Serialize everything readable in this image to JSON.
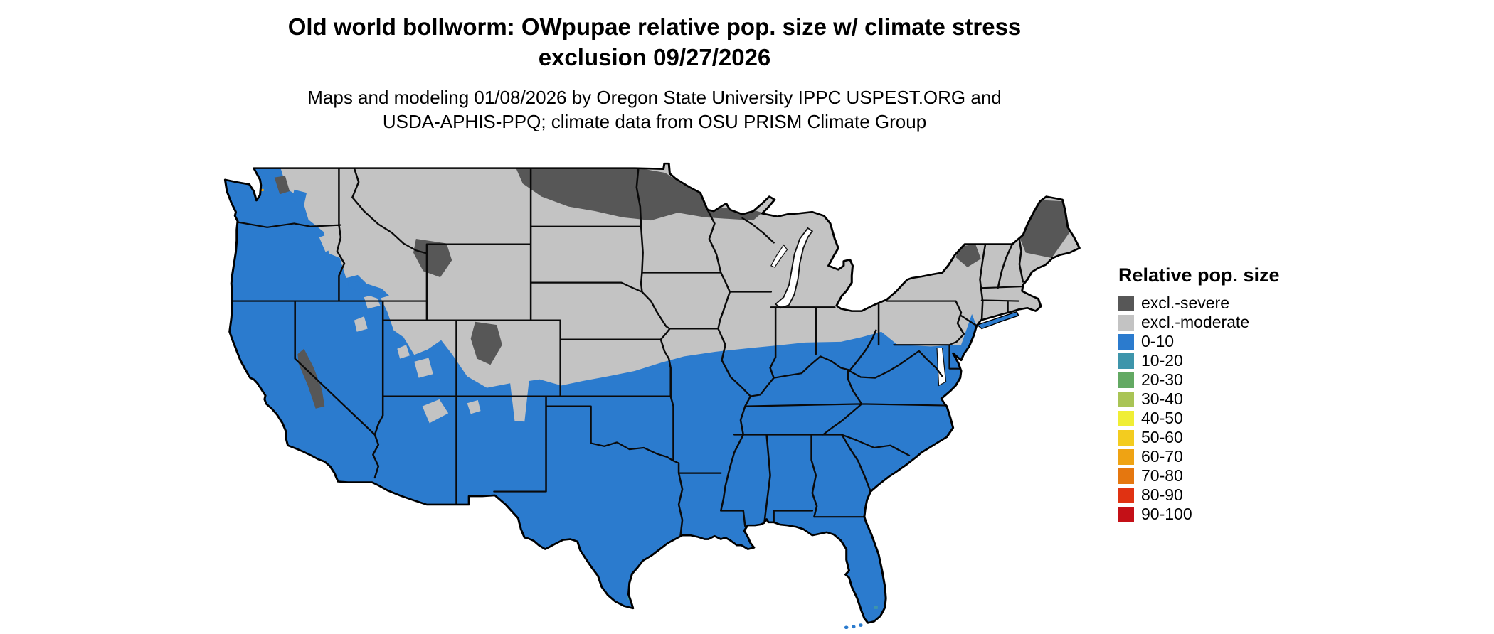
{
  "header": {
    "title_line1": "Old world bollworm: OWpupae relative pop. size w/ climate stress",
    "title_line2": "exclusion 09/27/2026",
    "subtitle_line1": "Maps and modeling 01/08/2026 by Oregon State University IPPC USPEST.ORG and",
    "subtitle_line2": "USDA-APHIS-PPQ; climate data from OSU PRISM Climate Group"
  },
  "legend": {
    "title": "Relative pop. size",
    "items": [
      {
        "label": "excl.-severe",
        "color": "#575757"
      },
      {
        "label": "excl.-moderate",
        "color": "#c3c3c3"
      },
      {
        "label": "0-10",
        "color": "#2b7bce"
      },
      {
        "label": "10-20",
        "color": "#3e95ab"
      },
      {
        "label": "20-30",
        "color": "#63a963"
      },
      {
        "label": "30-40",
        "color": "#a9c455"
      },
      {
        "label": "40-50",
        "color": "#f0ee35"
      },
      {
        "label": "50-60",
        "color": "#f3cc1f"
      },
      {
        "label": "60-70",
        "color": "#efa313"
      },
      {
        "label": "70-80",
        "color": "#e5770f"
      },
      {
        "label": "80-90",
        "color": "#e03212"
      },
      {
        "label": "90-100",
        "color": "#c41017"
      }
    ]
  }
}
